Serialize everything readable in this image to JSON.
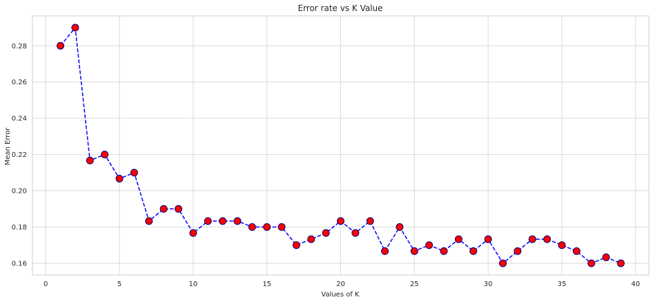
{
  "chart_data": {
    "type": "line",
    "title": "Error rate vs K Value",
    "xlabel": "Values of K",
    "ylabel": "Mean Error",
    "xlim": [
      -0.9,
      40.9
    ],
    "ylim": [
      0.1535,
      0.2965
    ],
    "xticks": [
      0,
      5,
      10,
      15,
      20,
      25,
      30,
      35,
      40
    ],
    "yticks": [
      0.16,
      0.18,
      0.2,
      0.22,
      0.24,
      0.26,
      0.28
    ],
    "ytick_labels": [
      "0.16",
      "0.18",
      "0.20",
      "0.22",
      "0.24",
      "0.26",
      "0.28"
    ],
    "grid": true,
    "series": [
      {
        "line_color": "#0000ff",
        "line_style": "dashed",
        "marker": "circle",
        "marker_face_color": "#ff0000",
        "marker_edge_color": "#000080",
        "x": [
          1,
          2,
          3,
          4,
          5,
          6,
          7,
          8,
          9,
          10,
          11,
          12,
          13,
          14,
          15,
          16,
          17,
          18,
          19,
          20,
          21,
          22,
          23,
          24,
          25,
          26,
          27,
          28,
          29,
          30,
          31,
          32,
          33,
          34,
          35,
          36,
          37,
          38,
          39
        ],
        "values": [
          0.28,
          0.29,
          0.2167,
          0.22,
          0.2067,
          0.21,
          0.1833,
          0.19,
          0.19,
          0.1767,
          0.1833,
          0.1833,
          0.1833,
          0.18,
          0.18,
          0.18,
          0.17,
          0.1733,
          0.1767,
          0.1833,
          0.1767,
          0.1833,
          0.1667,
          0.18,
          0.1667,
          0.17,
          0.1667,
          0.1733,
          0.1667,
          0.1733,
          0.16,
          0.1667,
          0.1733,
          0.1733,
          0.17,
          0.1667,
          0.16,
          0.1633,
          0.16
        ]
      }
    ]
  }
}
